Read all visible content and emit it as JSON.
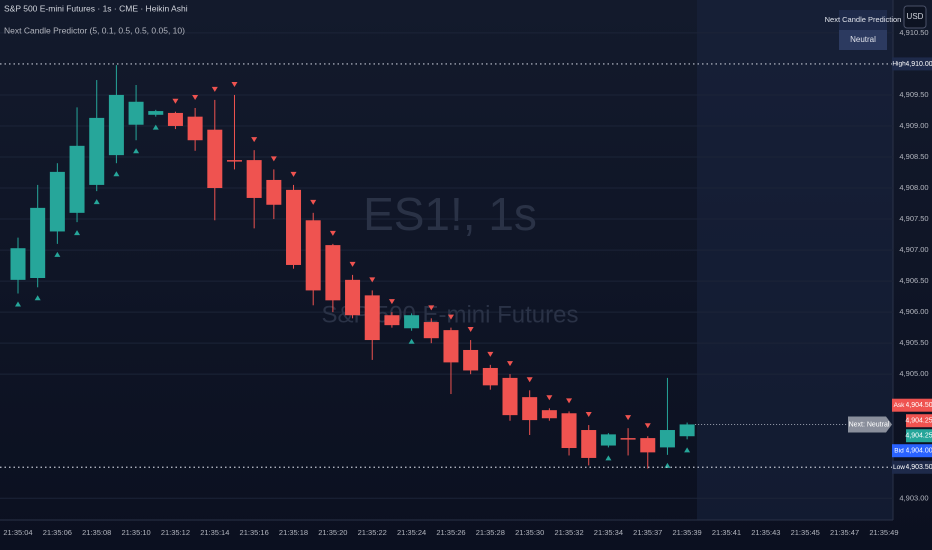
{
  "chart_data": {
    "type": "candlestick",
    "title": "S&P 500 E-mini Futures · 1s · CME · Heikin Ashi",
    "subtitle": "Next Candle Predictor (5, 0.1, 0.5, 0.5, 0.05, 10)",
    "watermark": [
      "ES1!, 1s",
      "S&P 500 E-mini Futures"
    ],
    "currency": "USD",
    "prediction": {
      "title": "Next Candle Prediction",
      "value": "Neutral",
      "flag": "Next: Neutral"
    },
    "up_color": "#26a69a",
    "down_color": "#ef5350",
    "categories": [
      "21:35:04",
      null,
      "21:35:06",
      null,
      "21:35:08",
      null,
      "21:35:10",
      null,
      "21:35:12",
      null,
      "21:35:14",
      null,
      "21:35:16",
      null,
      "21:35:18",
      null,
      "21:35:20",
      null,
      "21:35:22",
      null,
      "21:35:24",
      null,
      "21:35:26",
      null,
      "21:35:28",
      null,
      "21:35:30",
      null,
      "21:35:32",
      null,
      "21:35:34",
      null,
      "21:35:37",
      null,
      "21:35:39",
      null,
      "21:35:41",
      null,
      "21:35:43",
      null,
      "21:35:45",
      null,
      "21:35:47",
      null,
      "21:35:49"
    ],
    "open": [
      4906.52,
      4906.55,
      4907.3,
      4907.6,
      4908.05,
      4908.53,
      4909.02,
      4909.18,
      4909.21,
      4909.15,
      4908.94,
      4908.45,
      4908.45,
      4908.13,
      4907.97,
      4907.48,
      4907.08,
      4906.52,
      4906.27,
      4905.95,
      4905.74,
      4905.84,
      4905.71,
      4905.39,
      4905.1,
      4904.94,
      4904.63,
      4904.42,
      4904.37,
      4904.1,
      4903.85,
      4903.97,
      4903.97,
      4903.82,
      4904.0,
      null,
      null,
      null,
      null,
      null,
      null,
      null,
      null,
      null,
      null
    ],
    "high": [
      4907.2,
      4908.05,
      4908.4,
      4909.3,
      4909.74,
      4909.98,
      4909.66,
      4909.26,
      4909.23,
      4909.29,
      4909.42,
      4909.5,
      4908.61,
      4908.3,
      4908.05,
      4907.6,
      4907.1,
      4906.6,
      4906.35,
      4906.0,
      4905.98,
      4905.9,
      4905.75,
      4905.55,
      4905.15,
      4905.0,
      4904.74,
      4904.45,
      4904.4,
      4904.18,
      4904.05,
      4904.13,
      4904.0,
      4904.94,
      4904.22,
      null,
      null,
      null,
      null,
      null,
      null,
      null,
      null,
      null,
      null
    ],
    "low": [
      4906.3,
      4906.4,
      4907.1,
      4907.45,
      4907.95,
      4908.4,
      4908.77,
      4909.15,
      4908.95,
      4908.6,
      4907.48,
      4908.3,
      4907.35,
      4907.5,
      4906.7,
      4906.11,
      4906.0,
      4905.9,
      4905.23,
      4905.75,
      4905.7,
      4905.5,
      4904.68,
      4905.0,
      4904.75,
      4904.25,
      4904.02,
      4904.25,
      4903.69,
      4903.53,
      4903.82,
      4903.69,
      4903.48,
      4903.7,
      4903.95,
      null,
      null,
      null,
      null,
      null,
      null,
      null,
      null,
      null,
      null
    ],
    "close": [
      4907.03,
      4907.68,
      4908.26,
      4908.68,
      4909.13,
      4909.5,
      4909.39,
      4909.24,
      4909.0,
      4908.77,
      4908.0,
      4908.43,
      4907.84,
      4907.73,
      4906.76,
      4906.35,
      4906.19,
      4905.95,
      4905.55,
      4905.79,
      4905.95,
      4905.58,
      4905.19,
      4905.06,
      4904.82,
      4904.34,
      4904.26,
      4904.29,
      4903.81,
      4903.65,
      4904.03,
      4903.95,
      4903.74,
      4904.1,
      4904.19,
      null,
      null,
      null,
      null,
      null,
      null,
      null,
      null,
      null,
      null
    ],
    "ylim": [
      4902.65,
      4911.03
    ],
    "yticks": [
      {
        "value": 4910.5,
        "label": "4,910.50"
      },
      {
        "value": 4909.5,
        "label": "4,909.50"
      },
      {
        "value": 4909,
        "label": "4,909.00"
      },
      {
        "value": 4908.5,
        "label": "4,908.50"
      },
      {
        "value": 4908,
        "label": "4,908.00"
      },
      {
        "value": 4907.5,
        "label": "4,907.50"
      },
      {
        "value": 4907,
        "label": "4,907.00"
      },
      {
        "value": 4906.5,
        "label": "4,906.50"
      },
      {
        "value": 4906,
        "label": "4,906.00"
      },
      {
        "value": 4905.5,
        "label": "4,905.50"
      },
      {
        "value": 4905,
        "label": "4,905.00"
      },
      {
        "value": 4903,
        "label": "4,903.00"
      }
    ],
    "price_labels": [
      {
        "name": "High",
        "value": 4910,
        "label": "4,910.00",
        "color": "#1e2a4a",
        "line": true
      },
      {
        "name": "Ask",
        "value": 4904.5,
        "label": "4,904.50",
        "color": "#ef5350"
      },
      {
        "value": 4904.25,
        "label": "4,904.25",
        "color": "#ef5350"
      },
      {
        "value": 4904.25,
        "label": "4,904.25",
        "color": "#26a69a"
      },
      {
        "name": "Bid",
        "value": 4904,
        "label": "4,904.00",
        "color": "#2962ff"
      },
      {
        "name": "Low",
        "value": 4903.5,
        "label": "4,903.50",
        "color": "#1e2a4a",
        "line": true
      }
    ],
    "grid": true
  }
}
